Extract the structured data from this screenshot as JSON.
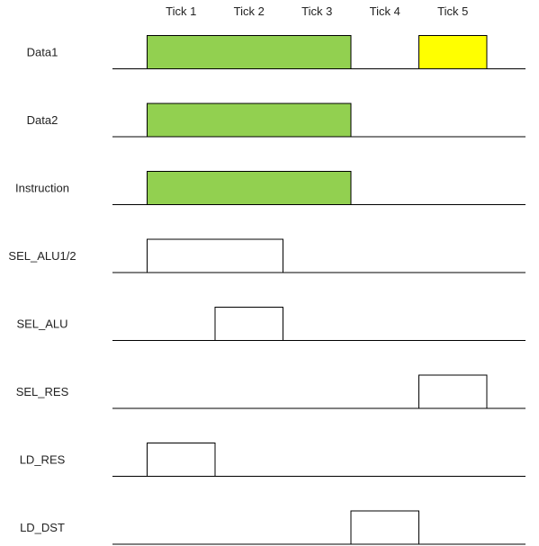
{
  "ticks": [
    "Tick 1",
    "Tick 2",
    "Tick 3",
    "Tick 4",
    "Tick 5"
  ],
  "colors": {
    "green": "#92d050",
    "yellow": "#ffff00",
    "white": "#ffffff"
  },
  "signals": [
    {
      "name": "Data1",
      "pulses": [
        {
          "start": 1,
          "end": 4,
          "color": "green"
        },
        {
          "start": 5,
          "end": 6,
          "color": "yellow"
        }
      ]
    },
    {
      "name": "Data2",
      "pulses": [
        {
          "start": 1,
          "end": 4,
          "color": "green"
        }
      ]
    },
    {
      "name": "Instruction",
      "pulses": [
        {
          "start": 1,
          "end": 4,
          "color": "green"
        }
      ]
    },
    {
      "name": "SEL_ALU1/2",
      "pulses": [
        {
          "start": 1,
          "end": 3,
          "color": "white"
        }
      ]
    },
    {
      "name": "SEL_ALU",
      "pulses": [
        {
          "start": 2,
          "end": 3,
          "color": "white"
        }
      ]
    },
    {
      "name": "SEL_RES",
      "pulses": [
        {
          "start": 5,
          "end": 6,
          "color": "white"
        }
      ]
    },
    {
      "name": "LD_RES",
      "pulses": [
        {
          "start": 1,
          "end": 2,
          "color": "white"
        }
      ]
    },
    {
      "name": "LD_DST",
      "pulses": [
        {
          "start": 4,
          "end": 5,
          "color": "white"
        }
      ]
    }
  ]
}
